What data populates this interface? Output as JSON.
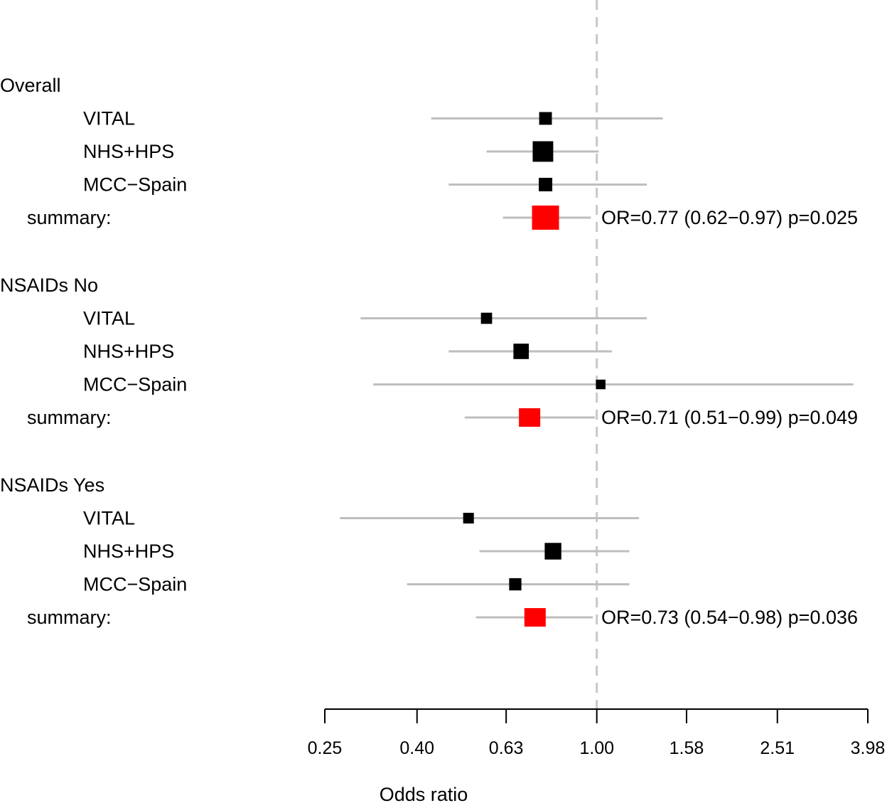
{
  "chart_data": {
    "type": "forest",
    "xlabel": "Odds ratio",
    "xscale": "log",
    "xlim": [
      0.25,
      3.98
    ],
    "ticks": [
      "0.25",
      "0.40",
      "0.63",
      "1.00",
      "1.58",
      "2.51",
      "3.98"
    ],
    "reference_line": 1.0,
    "colors": {
      "study": "#000000",
      "summary": "#ff0000",
      "ci": "#bebebe",
      "ref": "#c8c8c8"
    },
    "groups": [
      {
        "name": "Overall",
        "studies": [
          {
            "label": "VITAL",
            "or": 0.77,
            "lo": 0.43,
            "hi": 1.4,
            "weight": 0.45
          },
          {
            "label": "NHS+HPS",
            "or": 0.76,
            "lo": 0.57,
            "hi": 1.01,
            "weight": 0.95
          },
          {
            "label": "MCC−Spain",
            "or": 0.77,
            "lo": 0.47,
            "hi": 1.29,
            "weight": 0.5
          }
        ],
        "summary": {
          "label": "summary:",
          "or": 0.77,
          "lo": 0.62,
          "hi": 0.97,
          "text": "OR=0.77 (0.62−0.97) p=0.025"
        }
      },
      {
        "name": "NSAIDs No",
        "studies": [
          {
            "label": "VITAL",
            "or": 0.57,
            "lo": 0.3,
            "hi": 1.29,
            "weight": 0.35
          },
          {
            "label": "NHS+HPS",
            "or": 0.68,
            "lo": 0.47,
            "hi": 1.08,
            "weight": 0.62
          },
          {
            "label": "MCC−Spain",
            "or": 1.02,
            "lo": 0.32,
            "hi": 3.7,
            "weight": 0.25
          }
        ],
        "summary": {
          "label": "summary:",
          "or": 0.71,
          "lo": 0.51,
          "hi": 0.99,
          "text": "OR=0.71 (0.51−0.99) p=0.049"
        }
      },
      {
        "name": "NSAIDs Yes",
        "studies": [
          {
            "label": "VITAL",
            "or": 0.52,
            "lo": 0.27,
            "hi": 1.24,
            "weight": 0.32
          },
          {
            "label": "NHS+HPS",
            "or": 0.8,
            "lo": 0.55,
            "hi": 1.18,
            "weight": 0.7
          },
          {
            "label": "MCC−Spain",
            "or": 0.66,
            "lo": 0.38,
            "hi": 1.18,
            "weight": 0.42
          }
        ],
        "summary": {
          "label": "summary:",
          "or": 0.73,
          "lo": 0.54,
          "hi": 0.98,
          "text": "OR=0.73 (0.54−0.98) p=0.036"
        }
      }
    ]
  }
}
